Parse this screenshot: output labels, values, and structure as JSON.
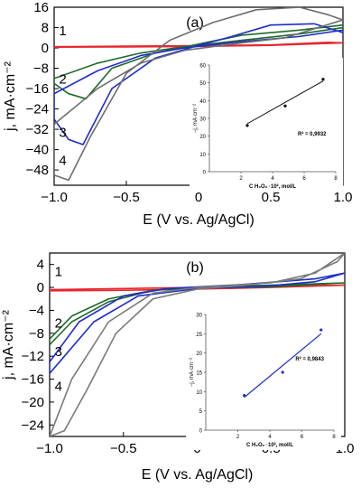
{
  "chart_data": [
    {
      "type": "line",
      "panel_label": "(a)",
      "xlabel": "E (V vs. Ag/AgCl)",
      "ylabel": "j, mA·cm⁻²",
      "xlim": [
        -1.0,
        1.0
      ],
      "ylim": [
        -54,
        16
      ],
      "xticks": [
        -1.0,
        -0.5,
        0,
        0.5,
        1.0
      ],
      "xtick_labels": [
        "−1.0",
        "−0.5",
        "0",
        "0.5",
        "1.0"
      ],
      "yticks": [
        16,
        8,
        0,
        -8,
        -16,
        -24,
        -32,
        -40,
        -48
      ],
      "ytick_labels": [
        "16",
        "8",
        "0",
        "−8",
        "−16",
        "−24",
        "−32",
        "−40",
        "−48"
      ],
      "curve_labels": [
        {
          "text": "1",
          "x": -0.94,
          "y": 5
        },
        {
          "text": "2",
          "x": -0.94,
          "y": -14
        },
        {
          "text": "3",
          "x": -0.94,
          "y": -35
        },
        {
          "text": "4",
          "x": -0.94,
          "y": -46
        }
      ],
      "series": [
        {
          "color": "#e8242c",
          "loop": [
            [
              -1.0,
              0.5
            ],
            [
              -0.5,
              0.7
            ],
            [
              0,
              0.9
            ],
            [
              0.5,
              1.2
            ],
            [
              0.9,
              2.2
            ],
            [
              1.0,
              2.0
            ],
            [
              0.5,
              1.0
            ],
            [
              0,
              0.6
            ],
            [
              -0.5,
              0.4
            ],
            [
              -1.0,
              0.3
            ]
          ]
        },
        {
          "color": "#1e6b2a",
          "loop": [
            [
              -1.0,
              -12
            ],
            [
              -0.7,
              -6
            ],
            [
              -0.4,
              -2
            ],
            [
              -0.1,
              0.5
            ],
            [
              0.3,
              3
            ],
            [
              0.7,
              5.5
            ],
            [
              1.0,
              8
            ],
            [
              1.0,
              9
            ],
            [
              0.7,
              7
            ],
            [
              0.3,
              5
            ],
            [
              0,
              1.5
            ],
            [
              -0.3,
              -2
            ],
            [
              -0.6,
              -8
            ],
            [
              -0.78,
              -20
            ],
            [
              -0.9,
              -18
            ],
            [
              -1.0,
              -14
            ]
          ]
        },
        {
          "color": "#1f2ccc",
          "loop": [
            [
              -1.0,
              -18
            ],
            [
              -0.7,
              -9
            ],
            [
              -0.4,
              -3
            ],
            [
              -0.1,
              0
            ],
            [
              0.3,
              2.5
            ],
            [
              0.7,
              4.5
            ],
            [
              1.0,
              7
            ],
            [
              1.0,
              6
            ],
            [
              0.8,
              9.5
            ],
            [
              0.5,
              9
            ],
            [
              0.2,
              4
            ],
            [
              0,
              1
            ],
            [
              -0.3,
              -4
            ],
            [
              -0.6,
              -16
            ],
            [
              -0.8,
              -38
            ],
            [
              -0.9,
              -36
            ],
            [
              -1.0,
              -28
            ]
          ]
        },
        {
          "color": "#6e6e6e",
          "loop": [
            [
              -1.0,
              -30
            ],
            [
              -0.7,
              -16
            ],
            [
              -0.4,
              -6
            ],
            [
              -0.1,
              -1
            ],
            [
              0.3,
              2
            ],
            [
              0.6,
              4
            ],
            [
              1.0,
              11
            ],
            [
              0.9,
              13
            ],
            [
              0.7,
              16
            ],
            [
              0.4,
              15
            ],
            [
              0.1,
              10
            ],
            [
              -0.2,
              3
            ],
            [
              -0.5,
              -10
            ],
            [
              -0.75,
              -35
            ],
            [
              -0.9,
              -52
            ],
            [
              -1.0,
              -50
            ]
          ]
        }
      ],
      "inset": {
        "ylabel": "−j, mA·cm⁻²",
        "xlabel": "C H₂O₂ ·10², mol/L",
        "ylim": [
          0,
          60
        ],
        "yticks": [
          0,
          10,
          20,
          30,
          40,
          50,
          60
        ],
        "xlim": [
          0,
          8
        ],
        "xticks": [
          2,
          4,
          6,
          8
        ],
        "points": [
          [
            2.4,
            26
          ],
          [
            4.8,
            37
          ],
          [
            7.2,
            52
          ]
        ],
        "fit": [
          [
            2.4,
            27
          ],
          [
            7.2,
            51
          ]
        ],
        "r2_label": "R² = 0,9932"
      }
    },
    {
      "type": "line",
      "panel_label": "(b)",
      "xlabel": "E (V vs. Ag/AgCl)",
      "ylabel": "j, mA·cm⁻²",
      "xlim": [
        -1.0,
        1.0
      ],
      "ylim": [
        -26,
        6
      ],
      "xticks": [
        -1.0,
        -0.5,
        0,
        0.5,
        1.0
      ],
      "xtick_labels": [
        "−1.0",
        "−0.5",
        "0",
        "0.5",
        "1.0"
      ],
      "yticks": [
        4,
        0,
        -4,
        -8,
        -12,
        -16,
        -20,
        -24
      ],
      "ytick_labels": [
        "4",
        "0",
        "−4",
        "−8",
        "−12",
        "−16",
        "−20",
        "−24"
      ],
      "curve_labels": [
        {
          "text": "1",
          "x": -0.94,
          "y": 2
        },
        {
          "text": "2",
          "x": -0.94,
          "y": -7
        },
        {
          "text": "3",
          "x": -0.94,
          "y": -12
        },
        {
          "text": "4",
          "x": -0.94,
          "y": -18
        }
      ],
      "series": [
        {
          "color": "#e8242c",
          "loop": [
            [
              -1.0,
              -0.4
            ],
            [
              -0.5,
              -0.2
            ],
            [
              0,
              0
            ],
            [
              0.5,
              0.2
            ],
            [
              1.0,
              0.4
            ],
            [
              0.5,
              0.0
            ],
            [
              0,
              -0.3
            ],
            [
              -0.5,
              -0.5
            ],
            [
              -1.0,
              -0.6
            ]
          ]
        },
        {
          "color": "#1e6b2a",
          "loop": [
            [
              -1.0,
              -9
            ],
            [
              -0.85,
              -5
            ],
            [
              -0.6,
              -2
            ],
            [
              -0.3,
              -0.5
            ],
            [
              0,
              0
            ],
            [
              0.5,
              0.4
            ],
            [
              1.0,
              0.8
            ],
            [
              0.5,
              0.1
            ],
            [
              0,
              -0.1
            ],
            [
              -0.3,
              -0.5
            ],
            [
              -0.6,
              -2.5
            ],
            [
              -0.85,
              -6
            ],
            [
              -1.0,
              -10
            ]
          ]
        },
        {
          "color": "#1f2ccc",
          "loop": [
            [
              -1.0,
              -13
            ],
            [
              -0.8,
              -6
            ],
            [
              -0.5,
              -1.5
            ],
            [
              -0.2,
              -0.2
            ],
            [
              0.3,
              0.5
            ],
            [
              0.8,
              1.5
            ],
            [
              1.0,
              2.5
            ],
            [
              0.8,
              1.0
            ],
            [
              0.5,
              0.3
            ],
            [
              0,
              -0.2
            ],
            [
              -0.4,
              -1.5
            ],
            [
              -0.7,
              -6
            ],
            [
              -0.9,
              -12
            ],
            [
              -1.0,
              -15
            ]
          ]
        },
        {
          "color": "#7a7a7a",
          "loop": [
            [
              -1.0,
              -26
            ],
            [
              -0.85,
              -16
            ],
            [
              -0.6,
              -6
            ],
            [
              -0.3,
              -1
            ],
            [
              0,
              0
            ],
            [
              0.5,
              0.8
            ],
            [
              0.8,
              2.5
            ],
            [
              1.0,
              6
            ],
            [
              0.95,
              4.5
            ],
            [
              0.7,
              1.5
            ],
            [
              0.3,
              0.3
            ],
            [
              0,
              -0.3
            ],
            [
              -0.3,
              -2
            ],
            [
              -0.55,
              -8
            ],
            [
              -0.75,
              -18
            ],
            [
              -0.9,
              -25
            ]
          ]
        }
      ],
      "inset": {
        "ylabel": "−j, mA·cm⁻²",
        "xlabel": "C H₂O₂ ·10², mol/L",
        "ylim": [
          0,
          30
        ],
        "yticks": [
          0,
          5,
          10,
          15,
          20,
          25,
          30
        ],
        "xlim": [
          0,
          8
        ],
        "xticks": [
          2,
          4,
          6,
          8
        ],
        "points": [
          [
            2.4,
            9
          ],
          [
            4.8,
            15
          ],
          [
            7.2,
            26
          ]
        ],
        "fit": [
          [
            2.4,
            8.5
          ],
          [
            7.2,
            25
          ]
        ],
        "r2_label": "R² = 0,9843"
      }
    }
  ]
}
